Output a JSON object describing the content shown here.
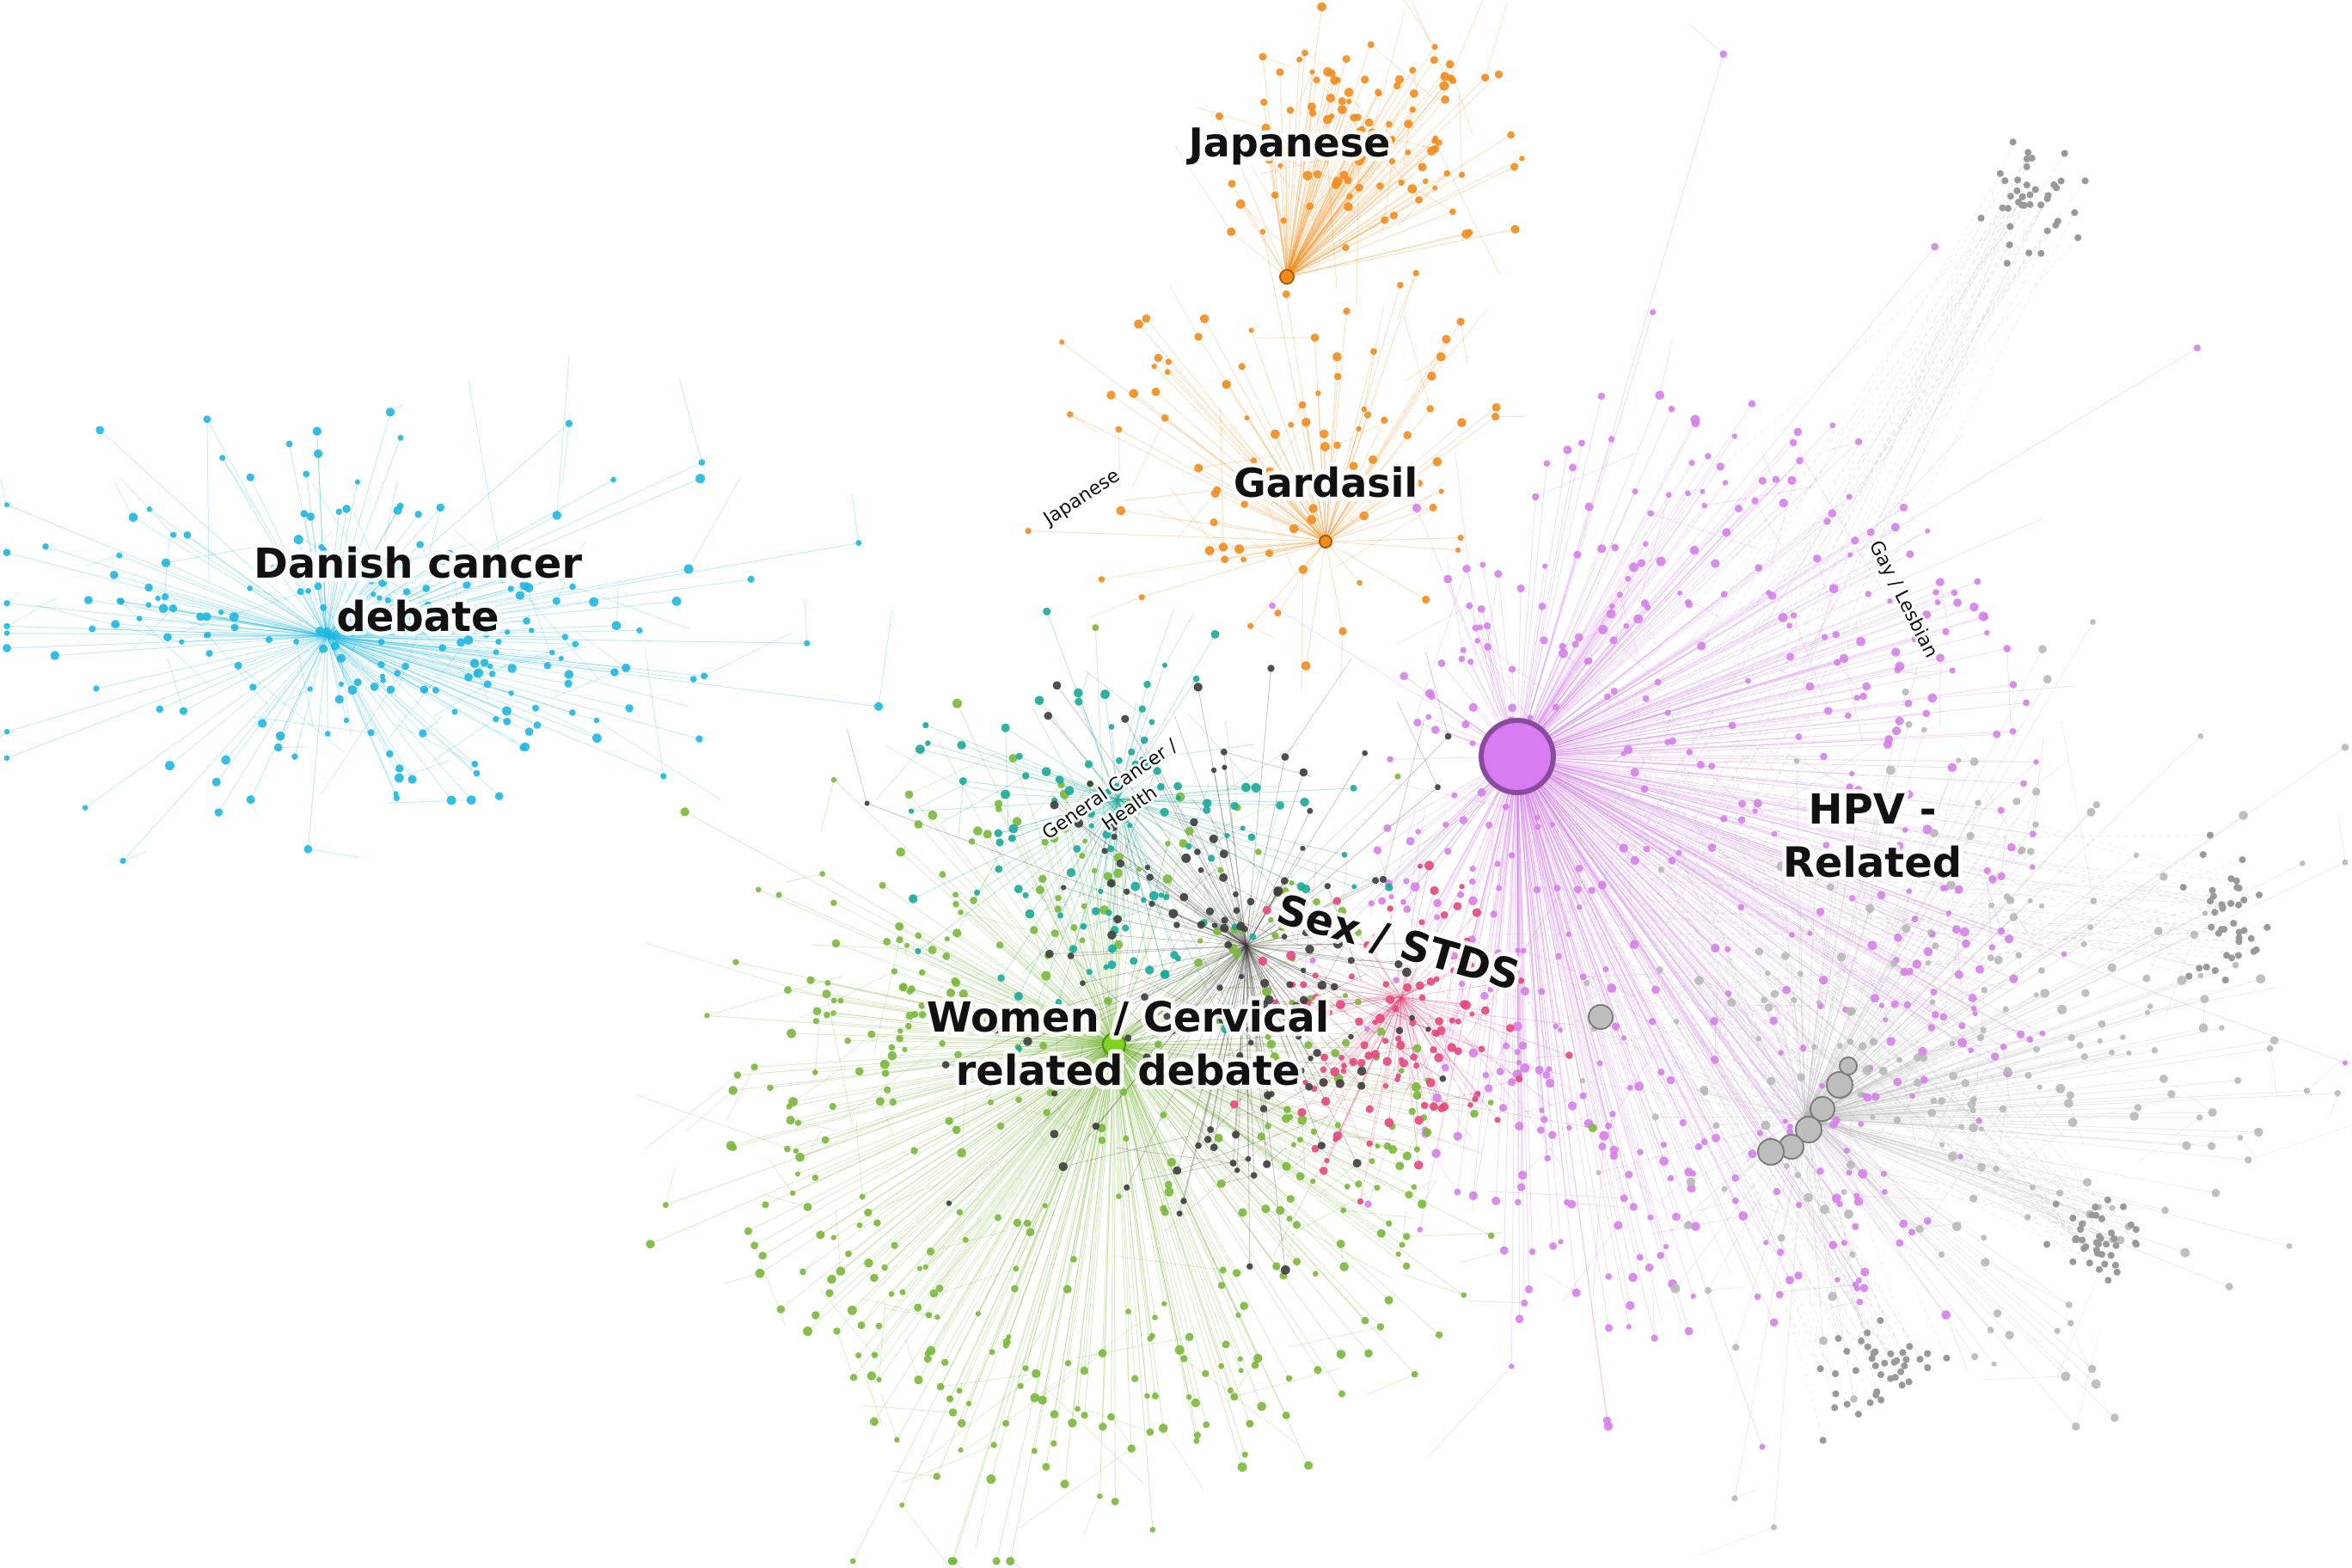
{
  "figure": {
    "background": "#ffffff"
  },
  "labels": {
    "japanese": "Japanese",
    "gardasil": "Gardasil",
    "japanese_small": "Japanese",
    "danish_line1": "Danish cancer",
    "danish_line2": "debate",
    "gay_lesbian": "Gay / Lesbian",
    "general_line1": "General Cancer /",
    "general_line2": "Health",
    "hpv_line1": "HPV -",
    "hpv_line2": "Related",
    "sex_stds": "Sex / STDS",
    "women_line1": "Women / Cervical",
    "women_line2": "related debate"
  },
  "clusters": [
    {
      "id": "japanese",
      "color": "#f28c1e"
    },
    {
      "id": "gardasil",
      "color": "#f28c1e"
    },
    {
      "id": "danish",
      "color": "#1fb6e0"
    },
    {
      "id": "hpv",
      "color": "#d57fe8"
    },
    {
      "id": "women",
      "color": "#7ab83c"
    },
    {
      "id": "sex_stds",
      "color": "#e4487a"
    },
    {
      "id": "general",
      "color": "#1aa898"
    },
    {
      "id": "other",
      "color": "#b8b8b8"
    },
    {
      "id": "dark",
      "color": "#3c3c3c"
    }
  ],
  "hubs": [
    {
      "name": "hpv-hub",
      "color": "#d87cf2",
      "stroke": "#8a4a9e"
    },
    {
      "name": "women-hub",
      "color": "#7ed321",
      "stroke": "#4c8a12"
    },
    {
      "name": "gardasil-hub",
      "color": "#f28c1e",
      "stroke": "#b05a00"
    },
    {
      "name": "japanese-hub",
      "color": "#f28c1e",
      "stroke": "#b05a00"
    }
  ]
}
